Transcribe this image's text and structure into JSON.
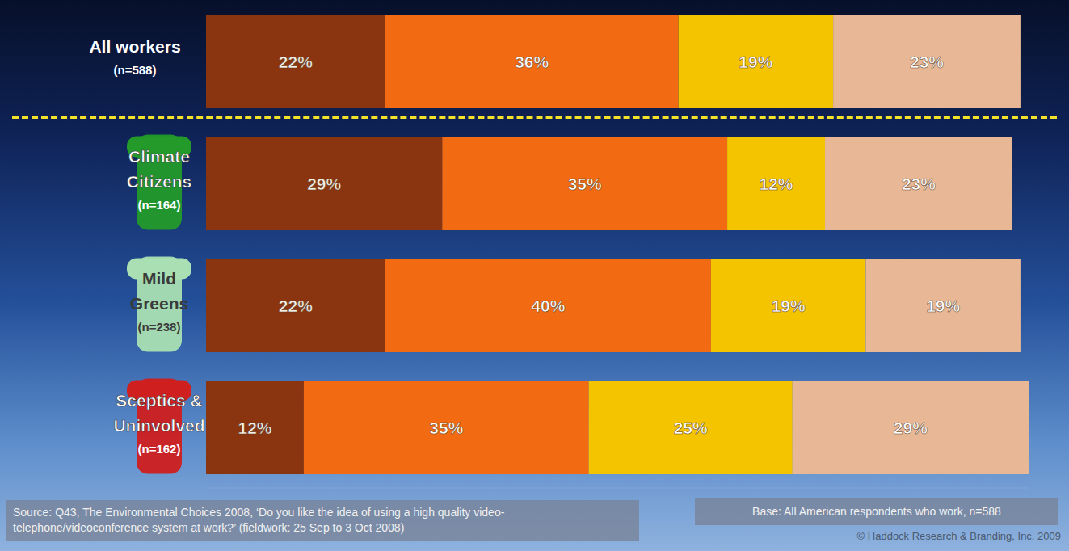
{
  "chart_data": {
    "type": "bar",
    "orientation": "horizontal",
    "stacked": true,
    "data_labels": true,
    "tick_labels": false,
    "categories": [
      "All workers",
      "Climate Citizens",
      "Mild Greens",
      "Sceptics & Uninvolved"
    ],
    "sample_labels": [
      "(n=588)",
      "(n=164)",
      "(n=238)",
      "(n=162)"
    ],
    "xlim": [
      0,
      101
    ],
    "series": [
      {
        "color": "#8a3510",
        "values": [
          22,
          29,
          22,
          12
        ],
        "value_labels": [
          "22%",
          "29%",
          "22%",
          "12%"
        ]
      },
      {
        "color": "#f26a12",
        "values": [
          36,
          35,
          40,
          35
        ],
        "value_labels": [
          "36%",
          "35%",
          "40%",
          "35%"
        ]
      },
      {
        "color": "#f4c400",
        "values": [
          19,
          12,
          19,
          25
        ],
        "value_labels": [
          "19%",
          "12%",
          "19%",
          "25%"
        ]
      },
      {
        "color": "#e8b896",
        "values": [
          23,
          23,
          19,
          29
        ],
        "value_labels": [
          "23%",
          "23%",
          "19%",
          "29%"
        ]
      }
    ],
    "source": "Source: Q43, The Environmental Choices 2008, ‘Do you like the idea of using a high quality video-telephone/videoconference system at work?’ (fieldwork: 25 Sep to 3 Oct 2008)",
    "base": "Base: All American respondents who work, n=588",
    "copyright": "© Haddock Research & Branding, Inc. 2009"
  }
}
